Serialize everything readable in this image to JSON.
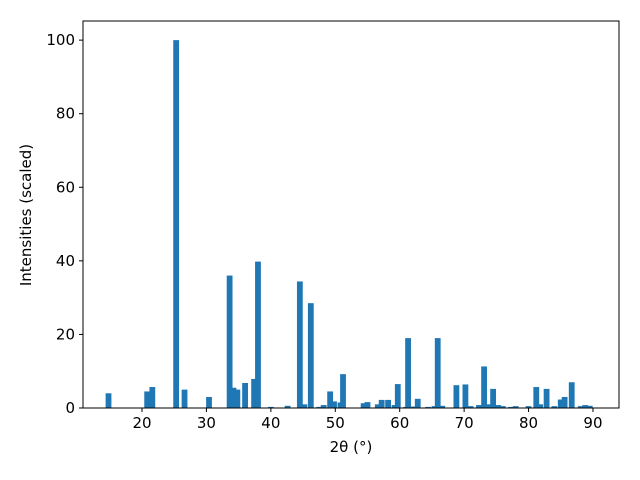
{
  "chart_data": {
    "type": "bar",
    "x_label": "2θ (°)",
    "y_label": "Intensities (scaled)",
    "color": "#1f77b4",
    "x": [
      14.8,
      20.8,
      21.6,
      25.3,
      26.6,
      30.4,
      33.6,
      34.2,
      34.8,
      36.0,
      37.4,
      38.0,
      40.0,
      42.6,
      44.5,
      45.2,
      46.2,
      47.5,
      48.2,
      49.2,
      49.8,
      50.8,
      51.2,
      54.4,
      55.0,
      56.6,
      57.2,
      58.2,
      59.2,
      59.7,
      61.0,
      61.3,
      62.2,
      62.8,
      64.4,
      65.4,
      65.9,
      66.6,
      68.8,
      70.2,
      71.0,
      72.3,
      73.1,
      73.7,
      74.5,
      75.3,
      76.0,
      77.3,
      78.0,
      80.0,
      81.2,
      81.8,
      82.8,
      84.0,
      85.0,
      85.6,
      86.7,
      88.1,
      88.8,
      89.5
    ],
    "values": [
      4,
      4.5,
      5.7,
      100,
      5,
      3,
      36,
      5.5,
      5,
      6.8,
      7.9,
      39.8,
      0.3,
      0.6,
      34.4,
      1,
      28.5,
      0.3,
      0.8,
      4.5,
      1.8,
      1.5,
      9.2,
      1.3,
      1.6,
      1,
      2.2,
      2.2,
      0.8,
      6.5,
      0.3,
      19,
      0.4,
      2.5,
      0.3,
      0.5,
      19,
      0.6,
      6.2,
      6.4,
      0.5,
      0.8,
      11.3,
      1,
      5.2,
      0.8,
      0.5,
      0.3,
      0.5,
      0.5,
      5.7,
      1,
      5.2,
      0.5,
      2.3,
      3,
      7,
      0.5,
      0.8,
      0.6
    ],
    "xlim": [
      10.84,
      94.04
    ],
    "ylim": [
      0,
      105.2
    ],
    "xticks": [
      20,
      30,
      40,
      50,
      60,
      70,
      80,
      90
    ],
    "yticks": [
      0,
      20,
      40,
      60,
      80,
      100
    ]
  }
}
